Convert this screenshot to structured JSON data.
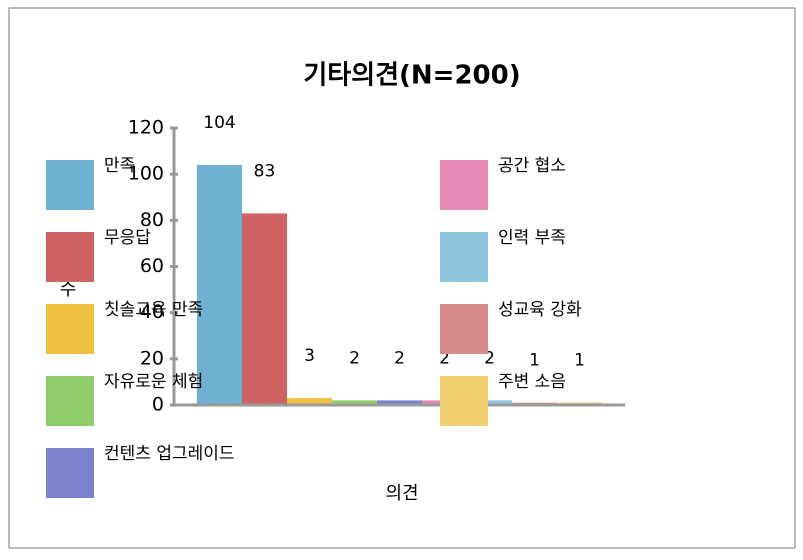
{
  "chart_data": {
    "type": "bar",
    "title": "기타의견(N=200)",
    "x_label": "의견",
    "y_label": "빈도수",
    "categories": [
      "만족",
      "무응답",
      "칫솔교육 만족",
      "자유로운 체험",
      "컨텐츠 업그레이드",
      "공간 협소",
      "인력 부족",
      "성교육 강화",
      "주변 소음"
    ],
    "values": [
      104,
      83,
      3,
      2,
      2,
      2,
      2,
      1,
      1
    ],
    "colors": [
      "#6fb0d3",
      "#cf6262",
      "#f0c040",
      "#8fcc6a",
      "#7a82cc",
      "#e68ab5",
      "#8ec4dc",
      "#d98a8a",
      "#f0d070"
    ],
    "ylim": [
      0,
      120
    ],
    "yticks": [
      0,
      20,
      40,
      60,
      80,
      100,
      120
    ],
    "legend": "left"
  }
}
